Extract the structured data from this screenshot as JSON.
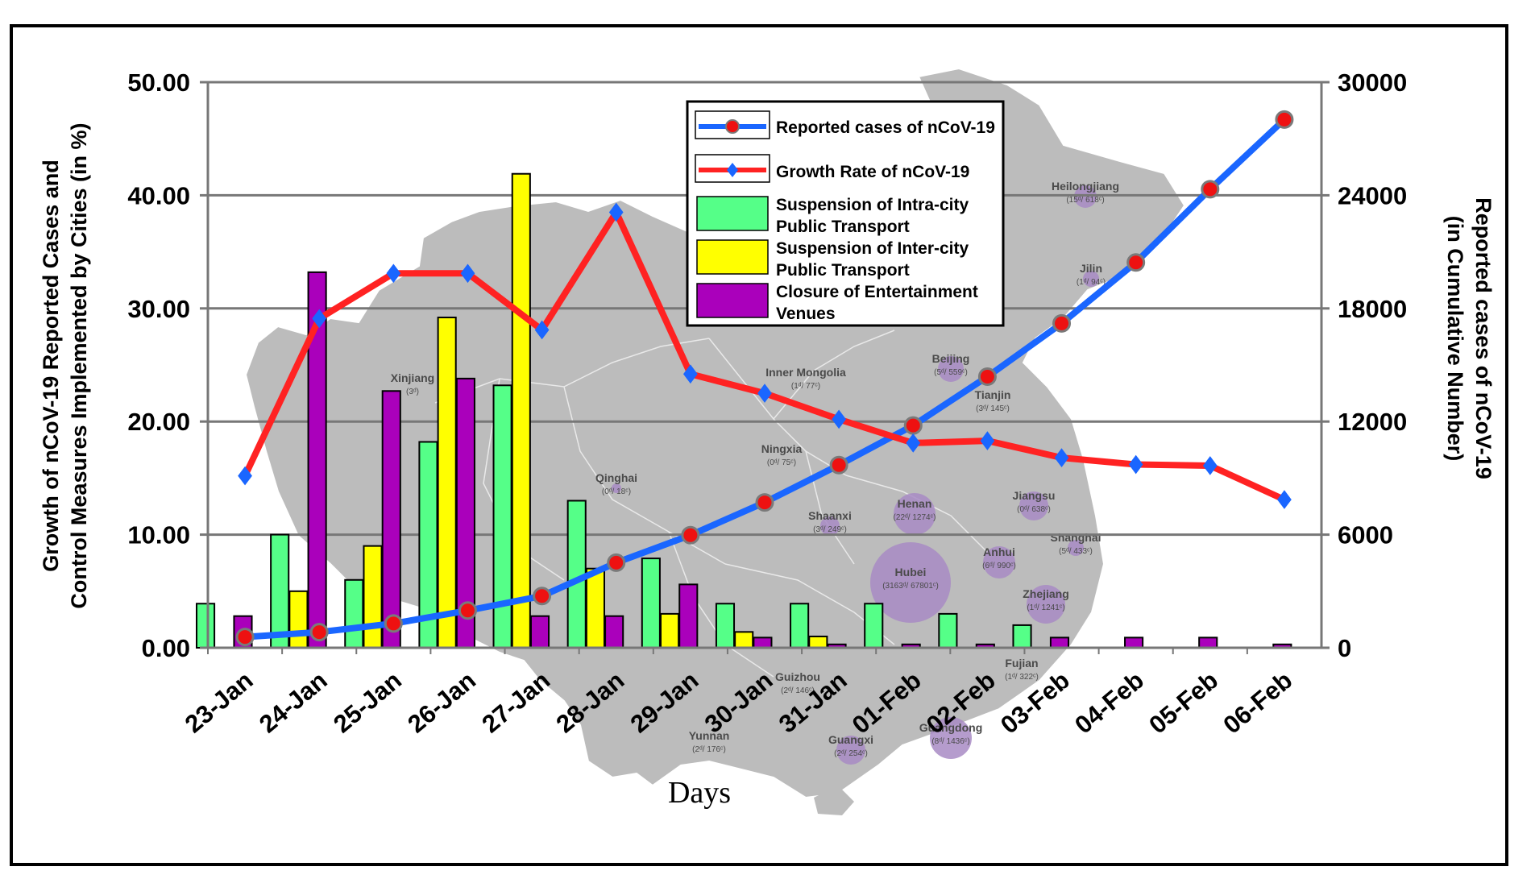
{
  "chart_data": {
    "type": "bar",
    "xlabel": "Days",
    "ylabel_left_line1": "Growth of nCoV-19 Reported Cases and",
    "ylabel_left_line2": "Control Measures Implemented by Cities (in %)",
    "ylabel_right_line1": "Reported cases of nCoV-19",
    "ylabel_right_line2": "(in Cumulative Number)",
    "ylim_left": [
      0,
      50
    ],
    "ylim_right": [
      0,
      30000
    ],
    "yticks_left": [
      "0.00",
      "10.00",
      "20.00",
      "30.00",
      "40.00",
      "50.00"
    ],
    "yticks_left_values": [
      0,
      10,
      20,
      30,
      40,
      50
    ],
    "yticks_right": [
      "0",
      "6000",
      "12000",
      "18000",
      "24000",
      "30000"
    ],
    "yticks_right_values": [
      0,
      6000,
      12000,
      18000,
      24000,
      30000
    ],
    "grid": "horizontal",
    "legend_position": "top-center",
    "categories": [
      "23-Jan",
      "24-Jan",
      "25-Jan",
      "26-Jan",
      "27-Jan",
      "28-Jan",
      "29-Jan",
      "30-Jan",
      "31-Jan",
      "01-Feb",
      "02-Feb",
      "03-Feb",
      "04-Feb",
      "05-Feb",
      "06-Feb"
    ],
    "bar_series": [
      {
        "name": "Suspension of Intra-city Public Transport",
        "name_line1": "Suspension of Intra-city",
        "name_line2": "Public Transport",
        "color": "#55ff88",
        "values": [
          3.9,
          10.0,
          6.0,
          18.2,
          23.2,
          13.0,
          7.9,
          3.9,
          3.9,
          3.9,
          3.0,
          2.0,
          0,
          0,
          0
        ]
      },
      {
        "name": "Suspension of Inter-city Public Transport",
        "name_line1": "Suspension of Inter-city",
        "name_line2": "Public Transport",
        "color": "#ffff00",
        "values": [
          0,
          5.0,
          9.0,
          29.2,
          41.9,
          7.0,
          3.0,
          1.4,
          1.0,
          0,
          0,
          0,
          0,
          0,
          0
        ]
      },
      {
        "name": "Closure of Entertainment Venues",
        "name_line1": "Closure of Entertainment",
        "name_line2": "Venues",
        "color": "#aa00bb",
        "values": [
          2.8,
          33.2,
          22.7,
          23.8,
          2.8,
          2.8,
          5.6,
          0.9,
          0.3,
          0.3,
          0.3,
          0.9,
          0.9,
          0.9,
          0.3
        ]
      }
    ],
    "line_series": [
      {
        "name": "Reported cases of nCoV-19",
        "axis": "right",
        "color": "#1a66ff",
        "marker": "circle",
        "marker_color": "#ee1111",
        "values": [
          571,
          830,
          1287,
          1975,
          2744,
          4515,
          5974,
          7711,
          9692,
          11791,
          14380,
          17205,
          20438,
          24324,
          28018
        ]
      },
      {
        "name": "Growth Rate of nCoV-19",
        "axis": "left",
        "color": "#ff2222",
        "marker": "diamond",
        "marker_color": "#1a66ff",
        "values": [
          15.2,
          29.1,
          33.1,
          33.1,
          28.1,
          38.5,
          24.2,
          22.5,
          20.2,
          18.1,
          18.3,
          16.8,
          16.2,
          16.1,
          13.1
        ]
      }
    ],
    "background_map": {
      "regions": [
        {
          "name": "Heilongjiang",
          "sub": "(15ᵈ/ 618ᶜ)"
        },
        {
          "name": "Jilin",
          "sub": "(1ᵈ/ 94ᶜ)"
        },
        {
          "name": "Beijing",
          "sub": "(5ᵈ/ 559ᶜ)"
        },
        {
          "name": "Tianjin",
          "sub": "(3ᵈ/ 145ᶜ)"
        },
        {
          "name": "Inner Mongolia",
          "sub": "(1ᵈ/ 77ᶜ)"
        },
        {
          "name": "Xinjiang",
          "sub": "(3ᵈ)"
        },
        {
          "name": "Qinghai",
          "sub": "(0ᵈ/ 18ᶜ)"
        },
        {
          "name": "Ningxia",
          "sub": "(0ᵈ/ 75ᶜ)"
        },
        {
          "name": "Shaanxi",
          "sub": "(3ᵈ/ 249ᶜ)"
        },
        {
          "name": "Henan",
          "sub": "(22ᵈ/ 1274ᶜ)"
        },
        {
          "name": "Hubei",
          "sub": "(3163ᵈ/ 67801ᶜ)"
        },
        {
          "name": "Jiangsu",
          "sub": "(0ᵈ/ 638ᶜ)"
        },
        {
          "name": "Shanghai",
          "sub": "(5ᵈ/ 433ᶜ)"
        },
        {
          "name": "Anhui",
          "sub": "(6ᵈ/ 990ᶜ)"
        },
        {
          "name": "Zhejiang",
          "sub": "(1ᵈ/ 1241ᶜ)"
        },
        {
          "name": "Fujian",
          "sub": "(1ᵈ/ 322ᶜ)"
        },
        {
          "name": "Guizhou",
          "sub": "(2ᵈ/ 146ᶜ)"
        },
        {
          "name": "Guangxi",
          "sub": "(2ᵈ/ 254ᶜ)"
        },
        {
          "name": "Guangdong",
          "sub": "(8ᵈ/ 1436ᶜ)"
        },
        {
          "name": "Yunnan",
          "sub": "(2ᵈ/ 176ᶜ)"
        }
      ]
    }
  }
}
